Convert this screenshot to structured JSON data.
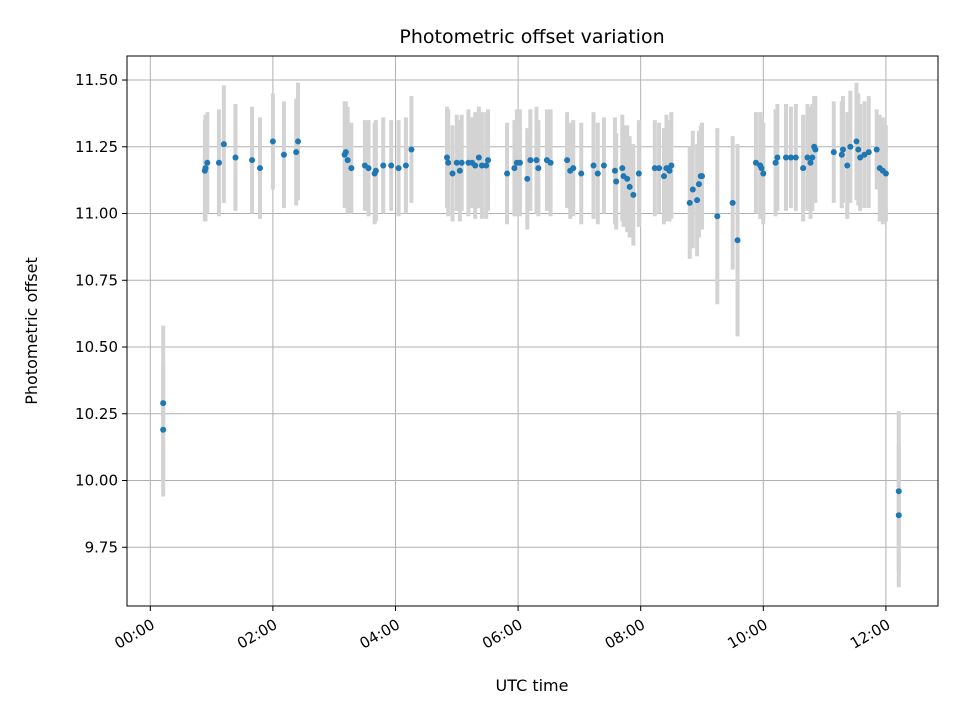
{
  "chart_data": {
    "type": "scatter",
    "title": "Photometric offset variation",
    "xlabel": "UTC time",
    "ylabel": "Photometric offset",
    "xlim": [
      -0.38,
      12.85
    ],
    "ylim": [
      9.53,
      11.59
    ],
    "grid": true,
    "x_unit": "hours since 00:00 UTC",
    "xticks": [
      {
        "value": 0,
        "label": "00:00"
      },
      {
        "value": 2,
        "label": "02:00"
      },
      {
        "value": 4,
        "label": "04:00"
      },
      {
        "value": 6,
        "label": "06:00"
      },
      {
        "value": 8,
        "label": "08:00"
      },
      {
        "value": 10,
        "label": "10:00"
      },
      {
        "value": 12,
        "label": "12:00"
      }
    ],
    "yticks": [
      {
        "value": 9.75,
        "label": "9.75"
      },
      {
        "value": 10.0,
        "label": "10.00"
      },
      {
        "value": 10.25,
        "label": "10.25"
      },
      {
        "value": 10.5,
        "label": "10.50"
      },
      {
        "value": 10.75,
        "label": "10.75"
      },
      {
        "value": 11.0,
        "label": "11.00"
      },
      {
        "value": 11.25,
        "label": "11.25"
      },
      {
        "value": 11.5,
        "label": "11.50"
      }
    ],
    "colors": {
      "marker": "#1f77b4",
      "errorbar": "#d3d3d3",
      "grid": "#b0b0b0",
      "axis": "#000000"
    },
    "points": [
      {
        "x": 0.21,
        "y": 10.29,
        "err": 0.29
      },
      {
        "x": 0.21,
        "y": 10.19,
        "err": 0.25
      },
      {
        "x": 0.89,
        "y": 11.16,
        "err": 0.19
      },
      {
        "x": 0.9,
        "y": 11.17,
        "err": 0.2
      },
      {
        "x": 0.93,
        "y": 11.19,
        "err": 0.19
      },
      {
        "x": 1.12,
        "y": 11.19,
        "err": 0.2
      },
      {
        "x": 1.2,
        "y": 11.26,
        "err": 0.22
      },
      {
        "x": 1.39,
        "y": 11.21,
        "err": 0.2
      },
      {
        "x": 1.66,
        "y": 11.2,
        "err": 0.2
      },
      {
        "x": 1.79,
        "y": 11.17,
        "err": 0.19
      },
      {
        "x": 2.0,
        "y": 11.27,
        "err": 0.18
      },
      {
        "x": 2.18,
        "y": 11.22,
        "err": 0.2
      },
      {
        "x": 2.38,
        "y": 11.23,
        "err": 0.2
      },
      {
        "x": 2.41,
        "y": 11.27,
        "err": 0.22
      },
      {
        "x": 3.17,
        "y": 11.22,
        "err": 0.2
      },
      {
        "x": 3.19,
        "y": 11.23,
        "err": 0.19
      },
      {
        "x": 3.22,
        "y": 11.2,
        "err": 0.2
      },
      {
        "x": 3.28,
        "y": 11.17,
        "err": 0.17
      },
      {
        "x": 3.5,
        "y": 11.18,
        "err": 0.17
      },
      {
        "x": 3.56,
        "y": 11.17,
        "err": 0.18
      },
      {
        "x": 3.66,
        "y": 11.15,
        "err": 0.19
      },
      {
        "x": 3.68,
        "y": 11.16,
        "err": 0.19
      },
      {
        "x": 3.8,
        "y": 11.18,
        "err": 0.18
      },
      {
        "x": 3.93,
        "y": 11.18,
        "err": 0.17
      },
      {
        "x": 4.05,
        "y": 11.17,
        "err": 0.18
      },
      {
        "x": 4.17,
        "y": 11.18,
        "err": 0.18
      },
      {
        "x": 4.26,
        "y": 11.24,
        "err": 0.2
      },
      {
        "x": 4.84,
        "y": 11.21,
        "err": 0.19
      },
      {
        "x": 4.86,
        "y": 11.19,
        "err": 0.2
      },
      {
        "x": 4.93,
        "y": 11.15,
        "err": 0.18
      },
      {
        "x": 5.0,
        "y": 11.19,
        "err": 0.18
      },
      {
        "x": 5.05,
        "y": 11.16,
        "err": 0.19
      },
      {
        "x": 5.08,
        "y": 11.19,
        "err": 0.18
      },
      {
        "x": 5.19,
        "y": 11.19,
        "err": 0.2
      },
      {
        "x": 5.25,
        "y": 11.19,
        "err": 0.17
      },
      {
        "x": 5.3,
        "y": 11.18,
        "err": 0.2
      },
      {
        "x": 5.36,
        "y": 11.21,
        "err": 0.19
      },
      {
        "x": 5.41,
        "y": 11.18,
        "err": 0.2
      },
      {
        "x": 5.48,
        "y": 11.18,
        "err": 0.2
      },
      {
        "x": 5.51,
        "y": 11.2,
        "err": 0.19
      },
      {
        "x": 5.82,
        "y": 11.15,
        "err": 0.19
      },
      {
        "x": 5.94,
        "y": 11.17,
        "err": 0.18
      },
      {
        "x": 5.98,
        "y": 11.19,
        "err": 0.2
      },
      {
        "x": 6.03,
        "y": 11.19,
        "err": 0.2
      },
      {
        "x": 6.15,
        "y": 11.13,
        "err": 0.19
      },
      {
        "x": 6.2,
        "y": 11.2,
        "err": 0.19
      },
      {
        "x": 6.3,
        "y": 11.2,
        "err": 0.2
      },
      {
        "x": 6.33,
        "y": 11.17,
        "err": 0.18
      },
      {
        "x": 6.47,
        "y": 11.2,
        "err": 0.19
      },
      {
        "x": 6.53,
        "y": 11.19,
        "err": 0.2
      },
      {
        "x": 6.8,
        "y": 11.2,
        "err": 0.18
      },
      {
        "x": 6.85,
        "y": 11.16,
        "err": 0.18
      },
      {
        "x": 6.9,
        "y": 11.17,
        "err": 0.18
      },
      {
        "x": 7.03,
        "y": 11.15,
        "err": 0.19
      },
      {
        "x": 7.23,
        "y": 11.18,
        "err": 0.2
      },
      {
        "x": 7.3,
        "y": 11.15,
        "err": 0.19
      },
      {
        "x": 7.4,
        "y": 11.18,
        "err": 0.18
      },
      {
        "x": 7.58,
        "y": 11.16,
        "err": 0.2
      },
      {
        "x": 7.6,
        "y": 11.12,
        "err": 0.18
      },
      {
        "x": 7.7,
        "y": 11.17,
        "err": 0.2
      },
      {
        "x": 7.72,
        "y": 11.14,
        "err": 0.19
      },
      {
        "x": 7.78,
        "y": 11.13,
        "err": 0.2
      },
      {
        "x": 7.82,
        "y": 11.1,
        "err": 0.19
      },
      {
        "x": 7.88,
        "y": 11.07,
        "err": 0.19
      },
      {
        "x": 7.97,
        "y": 11.15,
        "err": 0.2
      },
      {
        "x": 8.23,
        "y": 11.17,
        "err": 0.18
      },
      {
        "x": 8.3,
        "y": 11.17,
        "err": 0.17
      },
      {
        "x": 8.38,
        "y": 11.14,
        "err": 0.18
      },
      {
        "x": 8.42,
        "y": 11.17,
        "err": 0.2
      },
      {
        "x": 8.47,
        "y": 11.16,
        "err": 0.19
      },
      {
        "x": 8.5,
        "y": 11.18,
        "err": 0.2
      },
      {
        "x": 8.8,
        "y": 11.04,
        "err": 0.21
      },
      {
        "x": 8.85,
        "y": 11.09,
        "err": 0.22
      },
      {
        "x": 8.92,
        "y": 11.05,
        "err": 0.21
      },
      {
        "x": 8.95,
        "y": 11.11,
        "err": 0.2
      },
      {
        "x": 8.98,
        "y": 11.14,
        "err": 0.19
      },
      {
        "x": 9.0,
        "y": 11.14,
        "err": 0.2
      },
      {
        "x": 9.25,
        "y": 10.99,
        "err": 0.33
      },
      {
        "x": 9.5,
        "y": 11.04,
        "err": 0.25
      },
      {
        "x": 9.58,
        "y": 10.9,
        "err": 0.36
      },
      {
        "x": 9.88,
        "y": 11.19,
        "err": 0.19
      },
      {
        "x": 9.95,
        "y": 11.18,
        "err": 0.2
      },
      {
        "x": 9.97,
        "y": 11.17,
        "err": 0.19
      },
      {
        "x": 10.0,
        "y": 11.15,
        "err": 0.19
      },
      {
        "x": 10.2,
        "y": 11.19,
        "err": 0.2
      },
      {
        "x": 10.23,
        "y": 11.21,
        "err": 0.2
      },
      {
        "x": 10.37,
        "y": 11.21,
        "err": 0.2
      },
      {
        "x": 10.45,
        "y": 11.21,
        "err": 0.19
      },
      {
        "x": 10.53,
        "y": 11.21,
        "err": 0.2
      },
      {
        "x": 10.65,
        "y": 11.17,
        "err": 0.2
      },
      {
        "x": 10.72,
        "y": 11.21,
        "err": 0.2
      },
      {
        "x": 10.77,
        "y": 11.19,
        "err": 0.21
      },
      {
        "x": 10.8,
        "y": 11.21,
        "err": 0.2
      },
      {
        "x": 10.83,
        "y": 11.25,
        "err": 0.19
      },
      {
        "x": 10.85,
        "y": 11.24,
        "err": 0.2
      },
      {
        "x": 11.15,
        "y": 11.23,
        "err": 0.19
      },
      {
        "x": 11.28,
        "y": 11.22,
        "err": 0.2
      },
      {
        "x": 11.3,
        "y": 11.24,
        "err": 0.2
      },
      {
        "x": 11.37,
        "y": 11.18,
        "err": 0.2
      },
      {
        "x": 11.42,
        "y": 11.25,
        "err": 0.21
      },
      {
        "x": 11.52,
        "y": 11.27,
        "err": 0.22
      },
      {
        "x": 11.55,
        "y": 11.24,
        "err": 0.21
      },
      {
        "x": 11.58,
        "y": 11.21,
        "err": 0.2
      },
      {
        "x": 11.65,
        "y": 11.22,
        "err": 0.2
      },
      {
        "x": 11.72,
        "y": 11.23,
        "err": 0.21
      },
      {
        "x": 11.85,
        "y": 11.24,
        "err": 0.15
      },
      {
        "x": 11.9,
        "y": 11.17,
        "err": 0.2
      },
      {
        "x": 11.95,
        "y": 11.16,
        "err": 0.2
      },
      {
        "x": 12.0,
        "y": 11.15,
        "err": 0.18
      },
      {
        "x": 12.21,
        "y": 9.96,
        "err": 0.3
      },
      {
        "x": 12.21,
        "y": 9.87,
        "err": 0.27
      }
    ]
  }
}
